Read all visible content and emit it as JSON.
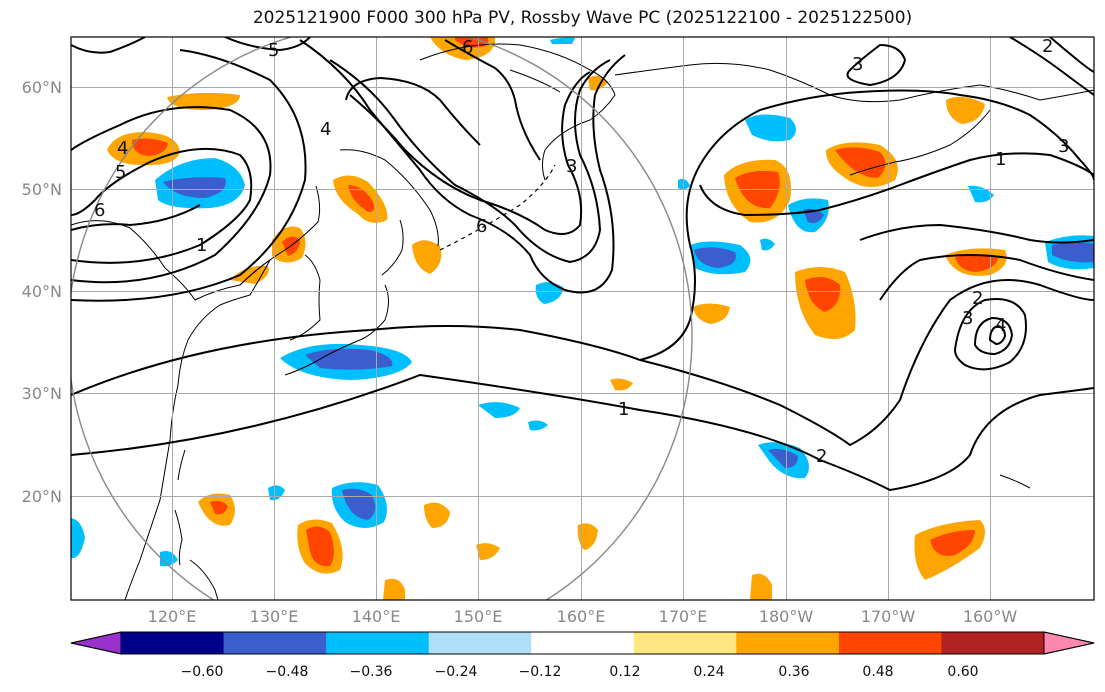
{
  "title": "2025121900 F000 300 hPa PV, Rossby Wave PC (2025122100 - 2025122500)",
  "lat_labels": [
    "60°N",
    "50°N",
    "40°N",
    "30°N",
    "20°N"
  ],
  "lon_labels": [
    "120°E",
    "130°E",
    "140°E",
    "150°E",
    "160°E",
    "170°E",
    "180°W",
    "170°W",
    "160°W"
  ],
  "contour_labels": [
    "1",
    "2",
    "3",
    "4",
    "5",
    "6"
  ],
  "colorbar": {
    "ticks": [
      "−0.60",
      "−0.48",
      "−0.36",
      "−0.24",
      "−0.12",
      "0.12",
      "0.24",
      "0.36",
      "0.48",
      "0.60"
    ],
    "colors": [
      "#9932cc",
      "#00008b",
      "#3a5fcd",
      "#00bfff",
      "#b0e0f8",
      "#ffffff",
      "#ffe680",
      "#ffa500",
      "#ff4500",
      "#b22222",
      "#ff88b0"
    ]
  }
}
